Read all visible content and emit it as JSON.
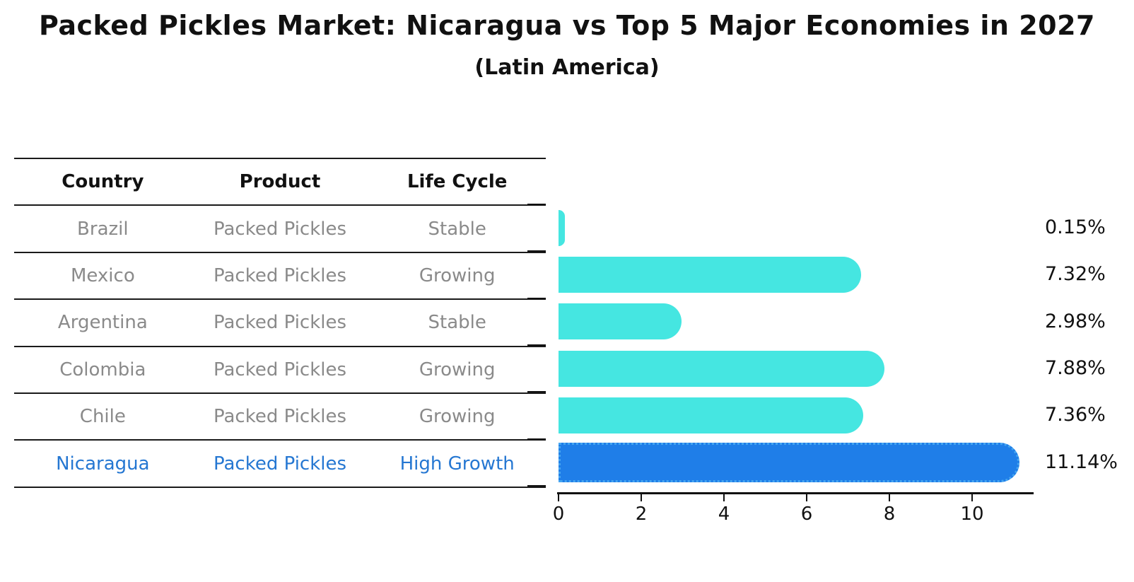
{
  "title": "Packed Pickles Market: Nicaragua vs Top 5 Major Economies in 2027",
  "subtitle": "(Latin America)",
  "colors": {
    "bar": "#45E6E1",
    "highlight_bar": "#1F7EE8",
    "highlight_border": "#45A5F0",
    "highlight_text": "#2577D2",
    "row_text": "#8A8A8A",
    "header_text": "#111111",
    "axis": "#111111"
  },
  "table": {
    "headers": [
      "Country",
      "Product",
      "Life Cycle"
    ],
    "rows": [
      {
        "country": "Brazil",
        "product": "Packed Pickles",
        "life_cycle": "Stable",
        "highlight": false
      },
      {
        "country": "Mexico",
        "product": "Packed Pickles",
        "life_cycle": "Growing",
        "highlight": false
      },
      {
        "country": "Argentina",
        "product": "Packed Pickles",
        "life_cycle": "Stable",
        "highlight": false
      },
      {
        "country": "Colombia",
        "product": "Packed Pickles",
        "life_cycle": "Growing",
        "highlight": false
      },
      {
        "country": "Chile",
        "product": "Packed Pickles",
        "life_cycle": "Growing",
        "highlight": false
      },
      {
        "country": "Nicaragua",
        "product": "Packed Pickles",
        "life_cycle": "High Growth",
        "highlight": true
      }
    ]
  },
  "chart_data": {
    "type": "bar",
    "orientation": "horizontal",
    "title": "Packed Pickles Market: Nicaragua vs Top 5 Major Economies in 2027 (Latin America)",
    "categories": [
      "Brazil",
      "Mexico",
      "Argentina",
      "Colombia",
      "Chile",
      "Nicaragua"
    ],
    "values": [
      0.15,
      7.32,
      2.98,
      7.88,
      7.36,
      11.14
    ],
    "value_labels": [
      "0.15%",
      "7.32%",
      "2.98%",
      "7.88%",
      "7.36%",
      "11.14%"
    ],
    "highlight_index": 5,
    "xticks": [
      0,
      2,
      4,
      6,
      8,
      10
    ],
    "xlim": [
      0,
      11.5
    ],
    "xlabel": "",
    "ylabel": "",
    "grid": false,
    "legend": "none"
  }
}
